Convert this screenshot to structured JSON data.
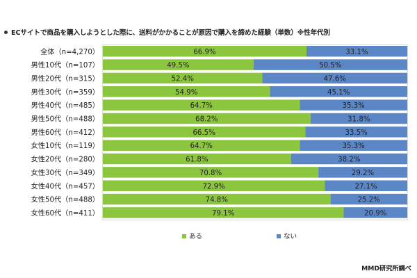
{
  "chart_data": {
    "type": "bar",
    "orientation": "horizontal",
    "stacked": true,
    "percent_stacked": true,
    "title": "ECサイトで商品を購入しようとした際に、送料がかかることが原因で購入を諦めた経験（単数）※性年代別",
    "categories": [
      "全体（n=4,270）",
      "男性10代（n=107）",
      "男性20代（n=315）",
      "男性30代（n=359）",
      "男性40代（n=485）",
      "男性50代（n=488）",
      "男性60代（n=412）",
      "女性10代（n=119）",
      "女性20代（n=280）",
      "女性30代（n=349）",
      "女性40代（n=457）",
      "女性50代（n=488）",
      "女性60代（n=411）"
    ],
    "series": [
      {
        "name": "ある",
        "color": "#8cc63f",
        "values": [
          66.9,
          49.5,
          52.4,
          54.9,
          64.7,
          68.2,
          66.5,
          64.7,
          61.8,
          70.8,
          72.9,
          74.8,
          79.1
        ],
        "labels": [
          "66.9%",
          "49.5%",
          "52.4%",
          "54.9%",
          "64.7%",
          "68.2%",
          "66.5%",
          "64.7%",
          "61.8%",
          "70.8%",
          "72.9%",
          "74.8%",
          "79.1%"
        ]
      },
      {
        "name": "ない",
        "color": "#5b87c7",
        "values": [
          33.1,
          50.5,
          47.6,
          45.1,
          35.3,
          31.8,
          33.5,
          35.3,
          38.2,
          29.2,
          27.1,
          25.2,
          20.9
        ],
        "labels": [
          "33.1%",
          "50.5%",
          "47.6%",
          "45.1%",
          "35.3%",
          "31.8%",
          "33.5%",
          "35.3%",
          "38.2%",
          "29.2%",
          "27.1%",
          "25.2%",
          "20.9%"
        ]
      }
    ],
    "xlim": [
      0,
      100
    ],
    "legend_position": "bottom",
    "grid": false
  },
  "source": "MMD研究所調べ"
}
